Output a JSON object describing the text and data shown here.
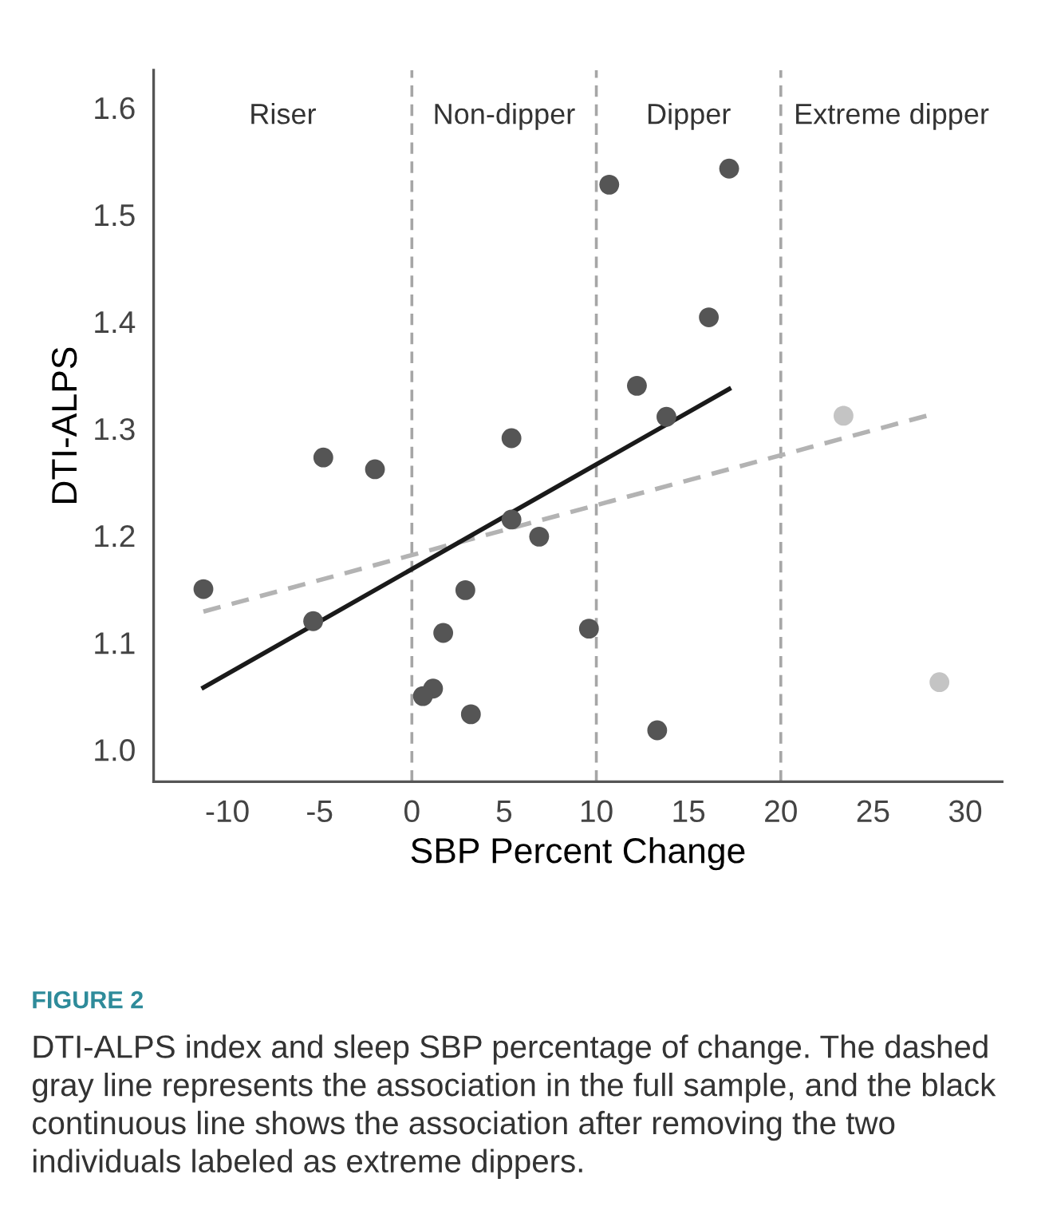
{
  "chart_data": {
    "type": "scatter",
    "xlabel": "SBP Percent Change",
    "ylabel": "DTI-ALPS",
    "xlim": [
      -14,
      32
    ],
    "ylim": [
      0.97,
      1.635
    ],
    "xticks": [
      -10,
      -5,
      0,
      5,
      10,
      15,
      20,
      25,
      30
    ],
    "yticks": [
      {
        "value": 1.0,
        "label": "1.0"
      },
      1.1,
      1.2,
      1.3,
      1.4,
      1.5,
      1.6
    ],
    "grid": false,
    "legend": false,
    "marker": "circle",
    "series": [
      {
        "type": "scatter",
        "color": "#555555",
        "x": [
          -11.3,
          -5.35,
          -4.8,
          -2.0,
          5.4,
          5.4,
          2.9,
          1.7,
          1.15,
          0.6,
          3.2,
          10.7,
          17.2,
          16.1,
          12.2,
          13.8,
          6.9,
          9.6,
          13.3
        ],
        "values": [
          1.15,
          1.12,
          1.273,
          1.262,
          1.291,
          1.215,
          1.149,
          1.109,
          1.057,
          1.05,
          1.033,
          1.528,
          1.543,
          1.404,
          1.34,
          1.311,
          1.199,
          1.113,
          1.018
        ]
      },
      {
        "type": "scatter",
        "color": "#c4c4c4",
        "x": [
          23.4,
          28.6
        ],
        "values": [
          1.312,
          1.063
        ]
      },
      {
        "type": "line",
        "color": "#b3b3b3",
        "line_style": "dashed",
        "marker": "none",
        "x": [
          -11.3,
          27.9
        ],
        "values": [
          1.129,
          1.312
        ]
      },
      {
        "type": "line",
        "color": "#1a1a1a",
        "line_style": "solid",
        "marker": "none",
        "x": [
          -11.3,
          17.2
        ],
        "values": [
          1.058,
          1.337
        ]
      }
    ],
    "ref_lines": [
      {
        "axis": "x",
        "value": 0,
        "color": "#a6a6a6",
        "line_style": "dashed"
      },
      {
        "axis": "x",
        "value": 10,
        "color": "#a6a6a6",
        "line_style": "dashed"
      },
      {
        "axis": "x",
        "value": 20,
        "color": "#a6a6a6",
        "line_style": "dashed"
      }
    ],
    "annotations": [
      "Riser",
      "Non-dipper",
      "Dipper",
      "Extreme dipper",
      "FIGURE 2",
      "DTI-ALPS index and sleep SBP percentage of change. The dashed gray line represents the association in the full sample, and the black continuous line shows the association after removing the two individuals labeled as extreme dippers."
    ]
  }
}
